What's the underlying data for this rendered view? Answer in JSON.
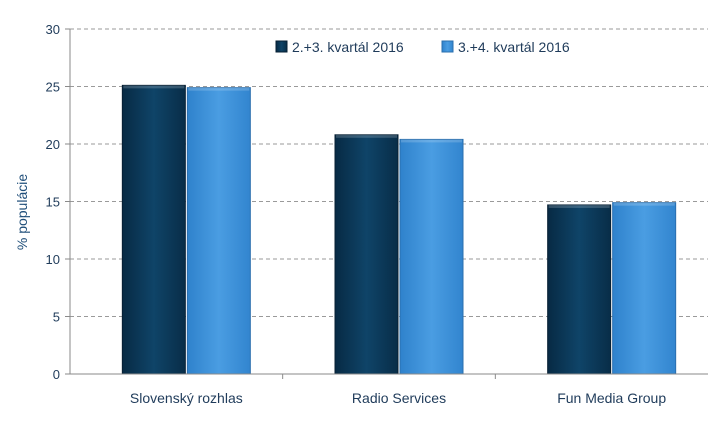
{
  "chart_data": {
    "type": "bar",
    "title": "",
    "xlabel": "",
    "ylabel": "% populácie",
    "ylim": [
      0,
      30
    ],
    "yticks": [
      0,
      5,
      10,
      15,
      20,
      25,
      30
    ],
    "grid": true,
    "legend_position": "top-right",
    "categories": [
      "Slovenský rozhlas",
      "Radio Services",
      "Fun Media Group"
    ],
    "series": [
      {
        "name": "2.+3. kvartál 2016",
        "color": "#0b3a5c",
        "values": [
          25.1,
          20.8,
          14.7
        ]
      },
      {
        "name": "3.+4. kvartál 2016",
        "color": "#3a8fd8",
        "values": [
          24.9,
          20.4,
          14.9
        ]
      }
    ]
  }
}
